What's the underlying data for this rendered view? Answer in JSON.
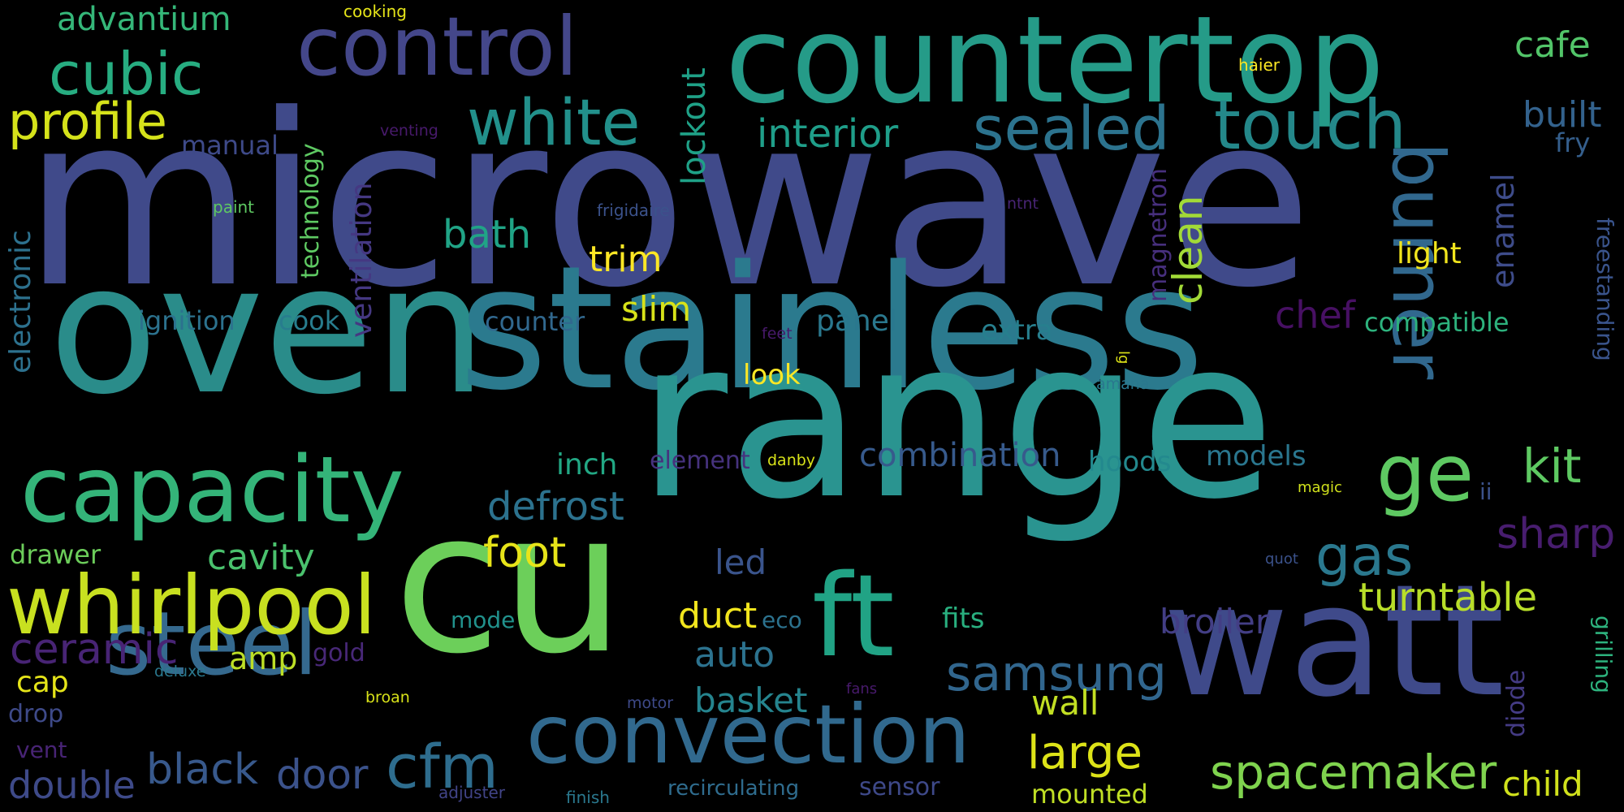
{
  "words": [
    {
      "text": "microwave",
      "color": "#404a8a"
    },
    {
      "text": "oven",
      "color": "#2a8c8a"
    },
    {
      "text": "stainless",
      "color": "#2b7a8e"
    },
    {
      "text": "range",
      "color": "#2a9490"
    },
    {
      "text": "countertop",
      "color": "#259b88"
    },
    {
      "text": "cu",
      "color": "#6ccf5a"
    },
    {
      "text": "watt",
      "color": "#3f4a8a"
    },
    {
      "text": "control",
      "color": "#44478a"
    },
    {
      "text": "capacity",
      "color": "#34b479"
    },
    {
      "text": "ft",
      "color": "#21a385"
    },
    {
      "text": "steel",
      "color": "#35698e"
    },
    {
      "text": "convection",
      "color": "#31698e"
    },
    {
      "text": "whirlpool",
      "color": "#c8e020"
    },
    {
      "text": "burner",
      "color": "#31688e"
    },
    {
      "text": "sealed",
      "color": "#2c738e"
    },
    {
      "text": "touch",
      "color": "#24888a"
    },
    {
      "text": "white",
      "color": "#22908b"
    },
    {
      "text": "cubic",
      "color": "#27ad81"
    },
    {
      "text": "profile",
      "color": "#d5e21a"
    },
    {
      "text": "ge",
      "color": "#5ec962"
    },
    {
      "text": "gas",
      "color": "#2a788e"
    },
    {
      "text": "cfm",
      "color": "#2e6d8e"
    },
    {
      "text": "spacemaker",
      "color": "#7fd34e"
    },
    {
      "text": "samsung",
      "color": "#31668e"
    },
    {
      "text": "interior",
      "color": "#1f9e89"
    },
    {
      "text": "foot",
      "color": "#e7e419"
    },
    {
      "text": "sharp",
      "color": "#481d6f"
    },
    {
      "text": "advantium",
      "color": "#35b779"
    },
    {
      "text": "cafe",
      "color": "#52c569"
    },
    {
      "text": "built",
      "color": "#33628d"
    },
    {
      "text": "ceramic",
      "color": "#482475"
    },
    {
      "text": "defrost",
      "color": "#2c728e"
    },
    {
      "text": "turntable",
      "color": "#b8de29"
    },
    {
      "text": "combination",
      "color": "#375a8c"
    },
    {
      "text": "black",
      "color": "#38598c"
    },
    {
      "text": "door",
      "color": "#3b528b"
    },
    {
      "text": "large",
      "color": "#dde318"
    },
    {
      "text": "double",
      "color": "#3e4a89"
    },
    {
      "text": "child",
      "color": "#d0e11c"
    },
    {
      "text": "kit",
      "color": "#5ec962"
    },
    {
      "text": "bath",
      "color": "#20a486"
    },
    {
      "text": "trim",
      "color": "#fde725"
    },
    {
      "text": "slim",
      "color": "#d8e219"
    },
    {
      "text": "clean",
      "color": "#a2da37"
    },
    {
      "text": "chef",
      "color": "#471063"
    },
    {
      "text": "lockout",
      "color": "#1fa187"
    },
    {
      "text": "ventilation",
      "color": "#453882"
    },
    {
      "text": "enamel",
      "color": "#3e4c8a"
    },
    {
      "text": "electronic",
      "color": "#2d718e"
    },
    {
      "text": "cavity",
      "color": "#4ac16d"
    },
    {
      "text": "auto",
      "color": "#2c728e"
    },
    {
      "text": "basket",
      "color": "#25848e"
    },
    {
      "text": "broiler",
      "color": "#433e85"
    },
    {
      "text": "duct",
      "color": "#f1e51d"
    },
    {
      "text": "wall",
      "color": "#c2df23"
    },
    {
      "text": "amp",
      "color": "#bddf26"
    },
    {
      "text": "cap",
      "color": "#e5e419"
    },
    {
      "text": "drawer",
      "color": "#6ccd5a"
    },
    {
      "text": "inch",
      "color": "#22a884"
    },
    {
      "text": "led",
      "color": "#3a548c"
    },
    {
      "text": "fits",
      "color": "#29af7f"
    },
    {
      "text": "hoods",
      "color": "#23898e"
    },
    {
      "text": "models",
      "color": "#2a768e"
    },
    {
      "text": "light",
      "color": "#f1e51d"
    },
    {
      "text": "look",
      "color": "#fde725"
    },
    {
      "text": "panel",
      "color": "#2a788e"
    },
    {
      "text": "extra",
      "color": "#277f8e"
    },
    {
      "text": "compatible",
      "color": "#2db27d"
    },
    {
      "text": "counter",
      "color": "#31688e"
    },
    {
      "text": "ignition",
      "color": "#2c728e"
    },
    {
      "text": "cook",
      "color": "#287d8e"
    },
    {
      "text": "mounted",
      "color": "#c0df25"
    },
    {
      "text": "sensor",
      "color": "#3e4989"
    },
    {
      "text": "recirculating",
      "color": "#2f6c8e"
    },
    {
      "text": "gold",
      "color": "#482878"
    },
    {
      "text": "mode",
      "color": "#21918c"
    },
    {
      "text": "eco",
      "color": "#2c728e"
    },
    {
      "text": "element",
      "color": "#46327e"
    },
    {
      "text": "manual",
      "color": "#3e4a89"
    },
    {
      "text": "technology",
      "color": "#5ec962"
    },
    {
      "text": "magnetron",
      "color": "#472f7d"
    },
    {
      "text": "fry",
      "color": "#355f8d"
    },
    {
      "text": "freestanding",
      "color": "#3a548c"
    },
    {
      "text": "grilling",
      "color": "#2db27d"
    },
    {
      "text": "diode",
      "color": "#443b84"
    },
    {
      "text": "drop",
      "color": "#3e4a89"
    },
    {
      "text": "vent",
      "color": "#482475"
    },
    {
      "text": "ii",
      "color": "#3b528b"
    },
    {
      "text": "cooking",
      "color": "#e5e419"
    },
    {
      "text": "haier",
      "color": "#fde725"
    },
    {
      "text": "venting",
      "color": "#481a6c"
    },
    {
      "text": "paint",
      "color": "#5ec962"
    },
    {
      "text": "frigidaire",
      "color": "#3b528b"
    },
    {
      "text": "ntnt",
      "color": "#482475"
    },
    {
      "text": "feet",
      "color": "#481a6c"
    },
    {
      "text": "lg",
      "color": "#dde318"
    },
    {
      "text": "amana",
      "color": "#2a788e"
    },
    {
      "text": "danby",
      "color": "#d8e219"
    },
    {
      "text": "magic",
      "color": "#d0e11c"
    },
    {
      "text": "quot",
      "color": "#3b528b"
    },
    {
      "text": "deluxe",
      "color": "#2a788e"
    },
    {
      "text": "broan",
      "color": "#d8e219"
    },
    {
      "text": "motor",
      "color": "#3e4a89"
    },
    {
      "text": "fans",
      "color": "#481a6c"
    },
    {
      "text": "adjuster",
      "color": "#414487"
    },
    {
      "text": "finish",
      "color": "#2a788e"
    }
  ]
}
